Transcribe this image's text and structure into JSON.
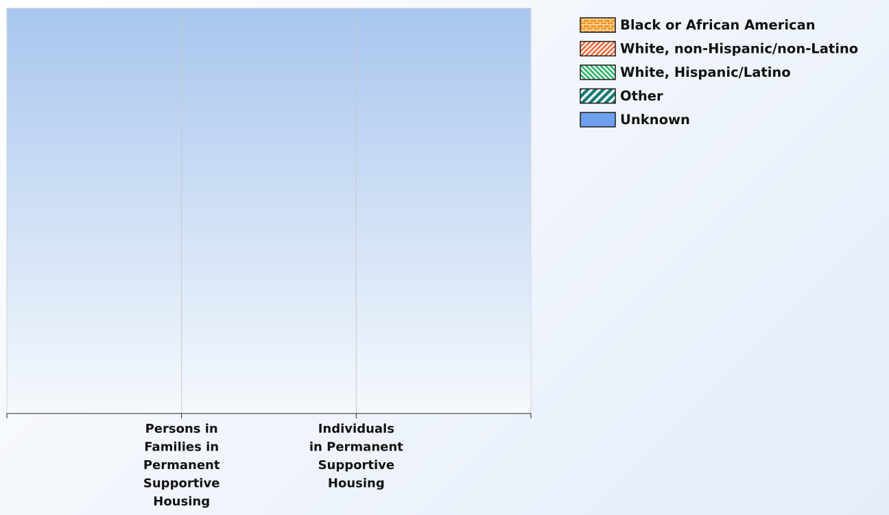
{
  "chart_data": {
    "type": "bar",
    "stacked": true,
    "title": "",
    "xlabel": "",
    "ylabel": "",
    "categories": [
      [
        "Persons in",
        "Families in",
        "Permanent",
        "Supportive",
        "Housing"
      ],
      [
        "Individuals",
        "in Permanent",
        "Supportive",
        "Housing"
      ]
    ],
    "series": [
      {
        "name": "Black or African American",
        "color": "#f7941d",
        "pattern": "brick",
        "values": [
          0,
          0
        ]
      },
      {
        "name": "White, non-Hispanic/non-Latino",
        "color": "#f26b3a",
        "pattern": "diagonal-hatch",
        "values": [
          0,
          0
        ]
      },
      {
        "name": "White, Hispanic/Latino",
        "color": "#2fb36a",
        "pattern": "diagonal-hatch-reverse",
        "values": [
          0,
          0
        ]
      },
      {
        "name": "Other",
        "color": "#0f7a72",
        "pattern": "wide-diagonal-hatch",
        "values": [
          0,
          0
        ]
      },
      {
        "name": "Unknown",
        "color": "#6fa0ee",
        "pattern": "solid",
        "values": [
          0,
          0
        ]
      }
    ],
    "grid": true,
    "legend_position": "top-right",
    "plot_background": [
      "#a8c6ee",
      "#f6f9fd"
    ],
    "gridline_color": "#c8c8c8",
    "axis_color": "#222222"
  }
}
